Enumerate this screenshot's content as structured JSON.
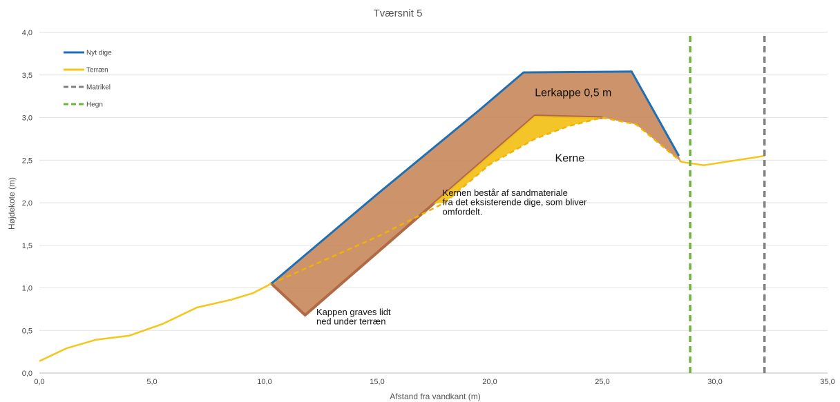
{
  "chart_data": {
    "type": "line",
    "title": "Tværsnit 5",
    "xlabel": "Afstand fra vandkant (m)",
    "ylabel": "Højdekote (m)",
    "xlim": [
      0,
      35
    ],
    "ylim": [
      0,
      4
    ],
    "xticks": [
      0,
      5,
      10,
      15,
      20,
      25,
      30,
      35
    ],
    "yticks": [
      0,
      0.5,
      1,
      1.5,
      2,
      2.5,
      3,
      3.5,
      4
    ],
    "xtick_labels": [
      "0,0",
      "5,0",
      "10,0",
      "15,0",
      "20,0",
      "25,0",
      "30,0",
      "35,0"
    ],
    "ytick_labels": [
      "0,0",
      "0,5",
      "1,0",
      "1,5",
      "2,0",
      "2,5",
      "3,0",
      "3,5",
      "4,0"
    ],
    "grid": true,
    "legend_position": "top-left",
    "series": [
      {
        "name": "Nyt dige",
        "color": "#1f6fb4",
        "style": "solid",
        "x": [
          10.3,
          15.0,
          19.5,
          21.5,
          26.3,
          28.4
        ],
        "y": [
          1.05,
          2.1,
          3.08,
          3.53,
          3.54,
          2.55
        ]
      },
      {
        "name": "Terræn",
        "color": "#f5c518",
        "style": "solid",
        "x": [
          0.0,
          1.2,
          2.5,
          4.0,
          5.5,
          7.0,
          8.5,
          9.5,
          10.3,
          28.5,
          29.0,
          29.5,
          32.2
        ],
        "y": [
          0.14,
          0.29,
          0.39,
          0.44,
          0.58,
          0.77,
          0.86,
          0.94,
          1.05,
          2.48,
          2.46,
          2.44,
          2.55
        ]
      },
      {
        "name": "Matrikel",
        "color": "#808080",
        "style": "dashed",
        "x": [
          32.2,
          32.2
        ],
        "y": [
          0,
          4
        ]
      },
      {
        "name": "Hegn",
        "color": "#6db33f",
        "style": "dashed",
        "x": [
          28.9,
          28.9
        ],
        "y": [
          0,
          4
        ]
      }
    ],
    "existing_terrain_dashed": {
      "x": [
        10.3,
        15.0,
        18.0,
        20.0,
        22.0,
        23.5,
        25.0,
        26.5,
        28.5
      ],
      "y": [
        1.05,
        1.6,
        2.0,
        2.45,
        2.75,
        2.9,
        3.0,
        2.92,
        2.48
      ]
    },
    "lerkappe_inner": {
      "x": [
        11.8,
        22.0,
        25.0
      ],
      "y": [
        0.68,
        3.02,
        3.0
      ]
    },
    "kappe_bottom": {
      "x": [
        10.3,
        11.8
      ],
      "y": [
        1.05,
        0.68
      ]
    },
    "annotations": [
      {
        "text": "Lerkappe 0,5 m",
        "x": 22.0,
        "y": 3.25,
        "size": "large"
      },
      {
        "text": "Kerne",
        "x": 22.9,
        "y": 2.48,
        "size": "large"
      },
      {
        "text": "Kernen består af sandmateriale",
        "x": 17.9,
        "y": 2.08,
        "size": "normal"
      },
      {
        "text": "fra det eksisterende dige, som bliver",
        "x": 17.9,
        "y": 1.97,
        "size": "normal"
      },
      {
        "text": "omfordelt.",
        "x": 17.9,
        "y": 1.86,
        "size": "normal"
      },
      {
        "text": "Kappen graves lidt",
        "x": 12.3,
        "y": 0.68,
        "size": "normal"
      },
      {
        "text": "ned under terræn",
        "x": 12.3,
        "y": 0.57,
        "size": "normal"
      }
    ],
    "fill_colors": {
      "lerkappe": "#c8875a",
      "lerkappe_edge": "#b06a45",
      "kerne": "#f3c21d"
    }
  }
}
